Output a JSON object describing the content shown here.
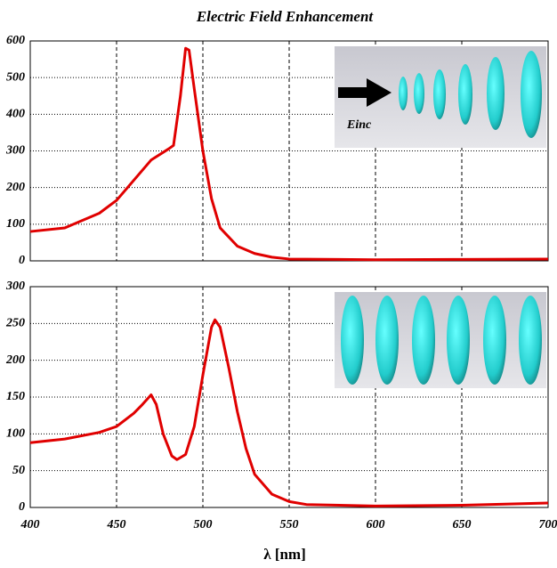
{
  "chart_data": [
    {
      "type": "line",
      "title": "Electric Field Enhancement",
      "annotation": "Einc",
      "x": [
        400,
        420,
        440,
        450,
        460,
        470,
        480,
        483,
        487,
        490,
        492,
        495,
        500,
        505,
        510,
        520,
        530,
        540,
        550,
        600,
        650,
        700
      ],
      "values": [
        80,
        90,
        130,
        165,
        220,
        275,
        305,
        315,
        450,
        580,
        575,
        470,
        300,
        170,
        90,
        40,
        20,
        10,
        5,
        3,
        4,
        5
      ],
      "color": "#e00000",
      "xlim": [
        400,
        700
      ],
      "ylim": [
        0,
        600
      ],
      "yticks": [
        0,
        100,
        200,
        300,
        400,
        500,
        600
      ],
      "grid": true
    },
    {
      "type": "line",
      "xlabel": "λ [nm]",
      "x": [
        400,
        420,
        440,
        450,
        460,
        465,
        470,
        473,
        477,
        482,
        485,
        490,
        495,
        500,
        505,
        507,
        510,
        515,
        520,
        525,
        530,
        540,
        550,
        560,
        600,
        650,
        700
      ],
      "values": [
        88,
        93,
        102,
        110,
        128,
        140,
        153,
        140,
        100,
        70,
        65,
        72,
        110,
        180,
        245,
        255,
        245,
        190,
        130,
        80,
        45,
        18,
        8,
        4,
        2,
        3,
        6
      ],
      "color": "#e00000",
      "xlim": [
        400,
        700
      ],
      "xticks": [
        400,
        450,
        500,
        550,
        600,
        650,
        700
      ],
      "ylim": [
        0,
        300
      ],
      "yticks": [
        0,
        50,
        100,
        150,
        200,
        250,
        300
      ],
      "grid": true
    }
  ]
}
